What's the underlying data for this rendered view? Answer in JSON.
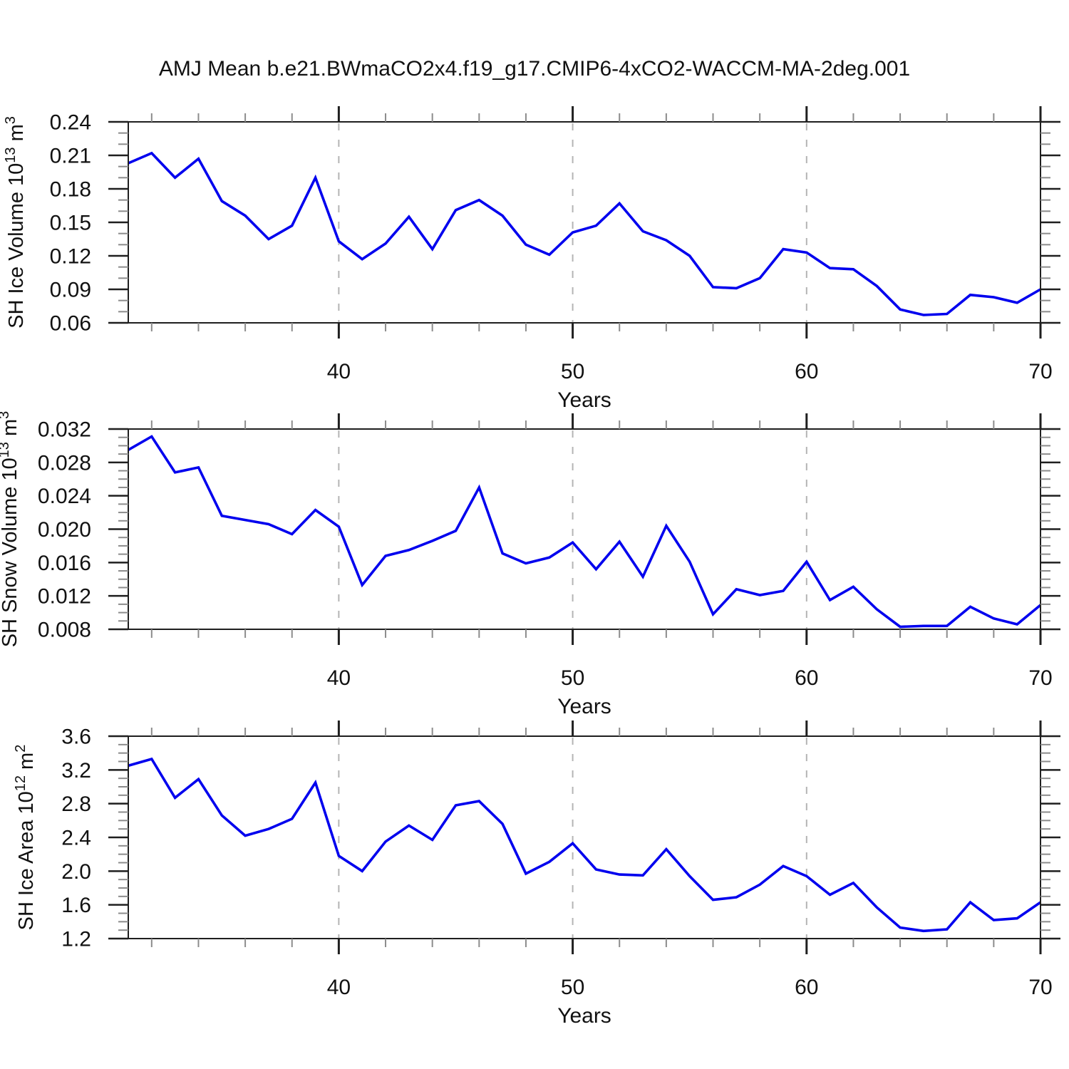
{
  "title": "AMJ Mean b.e21.BWmaCO2x4.f19_g17.CMIP6-4xCO2-WACCM-MA-2deg.001",
  "colors": {
    "line": "#0000ee",
    "grid": "#b4b4b4",
    "axis": "#1f1f1f",
    "minor_tick": "#8c8c8c",
    "text": "#111111",
    "background": "#ffffff"
  },
  "chart_data": [
    {
      "type": "line",
      "name": "sh-ice-volume",
      "ylabel_parts": [
        {
          "text": "SH Ice Volume 10",
          "sup": false
        },
        {
          "text": "13",
          "sup": true
        },
        {
          "text": " m",
          "sup": false
        },
        {
          "text": "3",
          "sup": true
        }
      ],
      "xlabel": "Years",
      "x": [
        31,
        32,
        33,
        34,
        35,
        36,
        37,
        38,
        39,
        40,
        41,
        42,
        43,
        44,
        45,
        46,
        47,
        48,
        49,
        50,
        51,
        52,
        53,
        54,
        55,
        56,
        57,
        58,
        59,
        60,
        61,
        62,
        63,
        64,
        65,
        66,
        67,
        68,
        69,
        70
      ],
      "values": [
        0.203,
        0.212,
        0.19,
        0.207,
        0.169,
        0.156,
        0.135,
        0.147,
        0.19,
        0.133,
        0.117,
        0.131,
        0.155,
        0.126,
        0.161,
        0.17,
        0.156,
        0.13,
        0.121,
        0.141,
        0.147,
        0.167,
        0.142,
        0.134,
        0.12,
        0.092,
        0.091,
        0.1,
        0.126,
        0.123,
        0.109,
        0.108,
        0.093,
        0.072,
        0.067,
        0.068,
        0.085,
        0.083,
        0.078,
        0.09
      ],
      "ylim": [
        0.06,
        0.24
      ],
      "ymajor_step": 0.03,
      "yminor_step": 0.01,
      "ytick_decimals": 2,
      "ytick_labels": [
        "0.06",
        "0.09",
        "0.12",
        "0.15",
        "0.18",
        "0.21",
        "0.24"
      ],
      "xlim": [
        31,
        70
      ],
      "xmajor_ticks": [
        40,
        50,
        60,
        70
      ],
      "xtick_labels": [
        "40",
        "50",
        "60",
        "70"
      ],
      "xminor_step": 2,
      "grid_x": [
        40,
        50,
        60
      ],
      "grid_style": "dashed",
      "legend": "none"
    },
    {
      "type": "line",
      "name": "sh-snow-volume",
      "ylabel_parts": [
        {
          "text": "SH Snow Volume 10",
          "sup": false
        },
        {
          "text": "13",
          "sup": true
        },
        {
          "text": " m",
          "sup": false
        },
        {
          "text": "3",
          "sup": true
        }
      ],
      "xlabel": "Years",
      "x": [
        31,
        32,
        33,
        34,
        35,
        36,
        37,
        38,
        39,
        40,
        41,
        42,
        43,
        44,
        45,
        46,
        47,
        48,
        49,
        50,
        51,
        52,
        53,
        54,
        55,
        56,
        57,
        58,
        59,
        60,
        61,
        62,
        63,
        64,
        65,
        66,
        67,
        68,
        69,
        70
      ],
      "values": [
        0.0295,
        0.0311,
        0.0268,
        0.0274,
        0.0216,
        0.0211,
        0.0206,
        0.0194,
        0.0223,
        0.0203,
        0.0133,
        0.0168,
        0.0175,
        0.0186,
        0.0198,
        0.025,
        0.0171,
        0.0159,
        0.0166,
        0.0184,
        0.0152,
        0.0185,
        0.0143,
        0.0204,
        0.0161,
        0.0098,
        0.0128,
        0.0121,
        0.0126,
        0.0161,
        0.0115,
        0.0131,
        0.0104,
        0.0083,
        0.0084,
        0.0084,
        0.0107,
        0.0093,
        0.0086,
        0.0109
      ],
      "ylim": [
        0.008,
        0.032
      ],
      "ymajor_step": 0.004,
      "yminor_step": 0.001,
      "ytick_decimals": 3,
      "ytick_labels": [
        "0.008",
        "0.012",
        "0.016",
        "0.020",
        "0.024",
        "0.028",
        "0.032"
      ],
      "xlim": [
        31,
        70
      ],
      "xmajor_ticks": [
        40,
        50,
        60,
        70
      ],
      "xtick_labels": [
        "40",
        "50",
        "60",
        "70"
      ],
      "xminor_step": 2,
      "grid_x": [
        40,
        50,
        60
      ],
      "grid_style": "dashed",
      "legend": "none"
    },
    {
      "type": "line",
      "name": "sh-ice-area",
      "ylabel_parts": [
        {
          "text": "SH Ice Area 10",
          "sup": false
        },
        {
          "text": "12",
          "sup": true
        },
        {
          "text": " m",
          "sup": false
        },
        {
          "text": "2",
          "sup": true
        }
      ],
      "xlabel": "Years",
      "x": [
        31,
        32,
        33,
        34,
        35,
        36,
        37,
        38,
        39,
        40,
        41,
        42,
        43,
        44,
        45,
        46,
        47,
        48,
        49,
        50,
        51,
        52,
        53,
        54,
        55,
        56,
        57,
        58,
        59,
        60,
        61,
        62,
        63,
        64,
        65,
        66,
        67,
        68,
        69,
        70
      ],
      "values": [
        3.25,
        3.33,
        2.87,
        3.09,
        2.66,
        2.42,
        2.5,
        2.62,
        3.05,
        2.18,
        2.0,
        2.35,
        2.54,
        2.37,
        2.78,
        2.83,
        2.56,
        1.97,
        2.11,
        2.33,
        2.02,
        1.96,
        1.95,
        2.26,
        1.94,
        1.66,
        1.69,
        1.84,
        2.06,
        1.94,
        1.72,
        1.86,
        1.57,
        1.33,
        1.29,
        1.31,
        1.63,
        1.42,
        1.44,
        1.63
      ],
      "ylim": [
        1.2,
        3.6
      ],
      "ymajor_step": 0.4,
      "yminor_step": 0.1,
      "ytick_decimals": 1,
      "ytick_labels": [
        "1.2",
        "1.6",
        "2.0",
        "2.4",
        "2.8",
        "3.2",
        "3.6"
      ],
      "xlim": [
        31,
        70
      ],
      "xmajor_ticks": [
        40,
        50,
        60,
        70
      ],
      "xtick_labels": [
        "40",
        "50",
        "60",
        "70"
      ],
      "xminor_step": 2,
      "grid_x": [
        40,
        50,
        60
      ],
      "grid_style": "dashed",
      "legend": "none"
    }
  ]
}
